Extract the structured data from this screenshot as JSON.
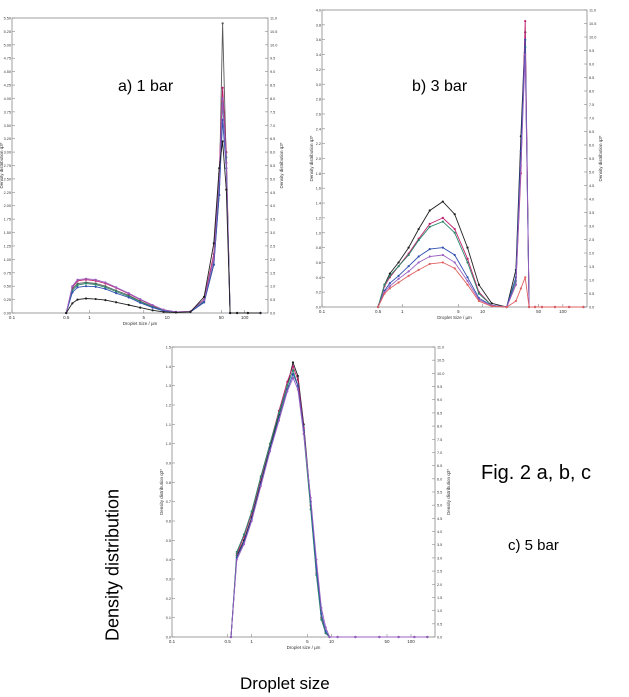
{
  "figure": {
    "fig_caption": "Fig. 2 a, b, c",
    "y_caption": "Density distribution",
    "x_caption": "Droplet size"
  },
  "chart_data": [
    {
      "type": "line",
      "panel_label": "a) 1 bar",
      "xlabel": "Droplet Size / µm",
      "ylabel_left": "Density distribution q3*",
      "ylabel_right": "Density distribution q3*",
      "x_scale": "log",
      "xlim": [
        0.1,
        200
      ],
      "x_ticks": [
        0.1,
        0.5,
        1,
        5,
        10,
        50,
        100
      ],
      "ylim_left": [
        0,
        5.5
      ],
      "y_ticks_left": [
        "0.00",
        "0.25",
        "0.50",
        "0.75",
        "1.00",
        "1.25",
        "1.50",
        "1.75",
        "2.00",
        "2.25",
        "2.50",
        "2.75",
        "3.00",
        "3.25",
        "3.50",
        "3.75",
        "4.00",
        "4.25",
        "4.50",
        "4.75",
        "5.00",
        "5.25",
        "5.50"
      ],
      "ylim_right": [
        0,
        11
      ],
      "y_ticks_right": [
        "0.0",
        "0.5",
        "1.0",
        "1.5",
        "2.0",
        "2.5",
        "3.0",
        "3.5",
        "4.0",
        "4.5",
        "5.0",
        "5.5",
        "6.0",
        "6.5",
        "7.0",
        "7.5",
        "8.0",
        "8.5",
        "9.0",
        "9.5",
        "10.0",
        "10.5",
        "11.0"
      ],
      "x": [
        0.5,
        0.6,
        0.7,
        0.9,
        1.2,
        1.6,
        2.2,
        3.2,
        4.5,
        6.5,
        9,
        13,
        20,
        30,
        40,
        47,
        52,
        58,
        65,
        80,
        110,
        160
      ],
      "series": [
        {
          "color": "#5a5a5a",
          "values": [
            0,
            0.45,
            0.55,
            0.57,
            0.55,
            0.5,
            0.42,
            0.33,
            0.22,
            0.12,
            0.05,
            0.02,
            0.02,
            0.2,
            0.9,
            2.2,
            5.4,
            2.8,
            0,
            0,
            0,
            0
          ]
        },
        {
          "color": "#c02070",
          "values": [
            0,
            0.48,
            0.6,
            0.62,
            0.6,
            0.55,
            0.47,
            0.36,
            0.25,
            0.14,
            0.06,
            0.02,
            0.03,
            0.25,
            1.1,
            2.6,
            4.2,
            3.0,
            0,
            0,
            0,
            0
          ]
        },
        {
          "color": "#2a8a6a",
          "values": [
            0,
            0.42,
            0.52,
            0.55,
            0.53,
            0.48,
            0.4,
            0.31,
            0.21,
            0.11,
            0.05,
            0.02,
            0.02,
            0.22,
            1.0,
            2.4,
            3.9,
            2.9,
            0,
            0,
            0,
            0
          ]
        },
        {
          "color": "#3050b0",
          "values": [
            0,
            0.38,
            0.48,
            0.5,
            0.49,
            0.45,
            0.37,
            0.29,
            0.19,
            0.1,
            0.04,
            0.02,
            0.02,
            0.2,
            0.9,
            2.2,
            3.6,
            2.7,
            0,
            0,
            0,
            0
          ]
        },
        {
          "color": "#9a60c0",
          "values": [
            0,
            0.5,
            0.62,
            0.64,
            0.62,
            0.57,
            0.48,
            0.37,
            0.26,
            0.15,
            0.06,
            0.02,
            0.03,
            0.24,
            1.0,
            2.5,
            4.0,
            2.8,
            0,
            0,
            0,
            0
          ]
        },
        {
          "color": "#202020",
          "values": [
            0,
            0.18,
            0.25,
            0.27,
            0.26,
            0.24,
            0.2,
            0.15,
            0.1,
            0.05,
            0.02,
            0.01,
            0.02,
            0.3,
            1.3,
            2.7,
            3.2,
            2.3,
            0,
            0,
            0,
            0
          ]
        }
      ]
    },
    {
      "type": "line",
      "panel_label": "b) 3 bar",
      "xlabel": "Droplet Size / µm",
      "ylabel_left": "Density distribution q3*",
      "ylabel_right": "Density distribution q3*",
      "x_scale": "log",
      "xlim": [
        0.1,
        200
      ],
      "x_ticks": [
        0.1,
        0.5,
        1,
        5,
        10,
        50,
        100
      ],
      "ylim_left": [
        0,
        4.0
      ],
      "y_ticks_left": [
        "0.0",
        "0.2",
        "0.4",
        "0.6",
        "0.8",
        "1.0",
        "1.2",
        "1.4",
        "1.6",
        "1.8",
        "2.0",
        "2.2",
        "2.4",
        "2.6",
        "2.8",
        "3.0",
        "3.2",
        "3.4",
        "3.6",
        "3.8",
        "4.0"
      ],
      "ylim_right": [
        0,
        11
      ],
      "y_ticks_right": [
        "0.0",
        "0.5",
        "1.0",
        "1.5",
        "2.0",
        "2.5",
        "3.0",
        "3.5",
        "4.0",
        "4.5",
        "5.0",
        "5.5",
        "6.0",
        "6.5",
        "7.0",
        "7.5",
        "8.0",
        "8.5",
        "9.0",
        "9.5",
        "10.0",
        "10.5",
        "11.0"
      ],
      "x": [
        0.5,
        0.6,
        0.7,
        0.9,
        1.2,
        1.6,
        2.2,
        3.2,
        4.5,
        6.5,
        9,
        13,
        20,
        26,
        30,
        34,
        38,
        45,
        55,
        80,
        120,
        180
      ],
      "series": [
        {
          "color": "#202020",
          "values": [
            0,
            0.3,
            0.45,
            0.6,
            0.8,
            1.05,
            1.3,
            1.42,
            1.25,
            0.8,
            0.3,
            0.05,
            0,
            0.5,
            2.3,
            3.7,
            0,
            0,
            0,
            0,
            0,
            0
          ]
        },
        {
          "color": "#c02070",
          "values": [
            0,
            0.28,
            0.4,
            0.55,
            0.72,
            0.92,
            1.12,
            1.2,
            1.05,
            0.65,
            0.2,
            0.02,
            0,
            0.3,
            1.8,
            3.85,
            0,
            0,
            0,
            0,
            0,
            0
          ]
        },
        {
          "color": "#2a8a6a",
          "values": [
            0,
            0.3,
            0.42,
            0.55,
            0.7,
            0.9,
            1.08,
            1.15,
            1.0,
            0.6,
            0.18,
            0.02,
            0,
            0.35,
            2.0,
            3.5,
            0,
            0,
            0,
            0,
            0,
            0
          ]
        },
        {
          "color": "#3050b0",
          "values": [
            0,
            0.22,
            0.32,
            0.42,
            0.55,
            0.68,
            0.78,
            0.8,
            0.7,
            0.4,
            0.12,
            0.02,
            0,
            0.4,
            2.1,
            3.6,
            0,
            0,
            0,
            0,
            0,
            0
          ]
        },
        {
          "color": "#9a60c0",
          "values": [
            0,
            0.2,
            0.28,
            0.38,
            0.48,
            0.6,
            0.68,
            0.7,
            0.6,
            0.35,
            0.1,
            0.02,
            0,
            0.3,
            1.9,
            3.4,
            0,
            0,
            0,
            0,
            0,
            0
          ]
        },
        {
          "color": "#e06060",
          "values": [
            0,
            0.18,
            0.25,
            0.33,
            0.42,
            0.5,
            0.58,
            0.6,
            0.52,
            0.3,
            0.08,
            0.01,
            0,
            0.08,
            0.25,
            0.4,
            0,
            0,
            0,
            0,
            0,
            0
          ]
        }
      ]
    },
    {
      "type": "line",
      "panel_label": "c) 5 bar",
      "xlabel": "Droplet size / µm",
      "ylabel_left": "Density distribution q3*",
      "ylabel_right": "Density distribution q3*",
      "x_scale": "log",
      "xlim": [
        0.1,
        200
      ],
      "x_ticks": [
        0.1,
        0.5,
        1,
        5,
        10,
        50,
        100
      ],
      "ylim_left": [
        0,
        1.5
      ],
      "y_ticks_left": [
        "0.0",
        "0.1",
        "0.2",
        "0.3",
        "0.4",
        "0.5",
        "0.6",
        "0.7",
        "0.8",
        "0.9",
        "1.0",
        "1.1",
        "1.2",
        "1.3",
        "1.4",
        "1.5"
      ],
      "ylim_right": [
        0,
        11
      ],
      "y_ticks_right": [
        "0.0",
        "0.5",
        "1.0",
        "1.5",
        "2.0",
        "2.5",
        "3.0",
        "3.5",
        "4.0",
        "4.5",
        "5.0",
        "5.5",
        "6.0",
        "6.5",
        "7.0",
        "7.5",
        "8.0",
        "8.5",
        "9.0",
        "9.5",
        "10.0",
        "10.5",
        "11.0"
      ],
      "x": [
        0.55,
        0.65,
        0.8,
        1.0,
        1.3,
        1.7,
        2.2,
        2.8,
        3.3,
        3.8,
        4.5,
        5.5,
        6.5,
        7.5,
        8.5,
        9.5,
        12,
        20,
        40,
        70,
        110,
        160
      ],
      "series": [
        {
          "color": "#202020",
          "values": [
            0,
            0.42,
            0.5,
            0.62,
            0.8,
            0.98,
            1.15,
            1.3,
            1.42,
            1.35,
            1.1,
            0.7,
            0.35,
            0.1,
            0.02,
            0,
            0,
            0,
            0,
            0,
            0,
            0
          ]
        },
        {
          "color": "#c02070",
          "values": [
            0,
            0.43,
            0.52,
            0.64,
            0.82,
            1.0,
            1.17,
            1.32,
            1.4,
            1.33,
            1.08,
            0.68,
            0.33,
            0.1,
            0.02,
            0,
            0,
            0,
            0,
            0,
            0,
            0
          ]
        },
        {
          "color": "#2a8a6a",
          "values": [
            0,
            0.44,
            0.53,
            0.65,
            0.83,
            1.0,
            1.16,
            1.3,
            1.38,
            1.3,
            1.05,
            0.66,
            0.32,
            0.09,
            0.02,
            0,
            0,
            0,
            0,
            0,
            0,
            0
          ]
        },
        {
          "color": "#3050b0",
          "values": [
            0,
            0.41,
            0.49,
            0.61,
            0.79,
            0.97,
            1.13,
            1.28,
            1.36,
            1.3,
            1.07,
            0.7,
            0.36,
            0.12,
            0.03,
            0,
            0,
            0,
            0,
            0,
            0,
            0
          ]
        },
        {
          "color": "#9a60c0",
          "values": [
            0,
            0.4,
            0.48,
            0.6,
            0.78,
            0.96,
            1.12,
            1.27,
            1.34,
            1.28,
            1.05,
            0.72,
            0.4,
            0.15,
            0.05,
            0,
            0,
            0,
            0,
            0,
            0,
            0
          ]
        }
      ]
    }
  ]
}
